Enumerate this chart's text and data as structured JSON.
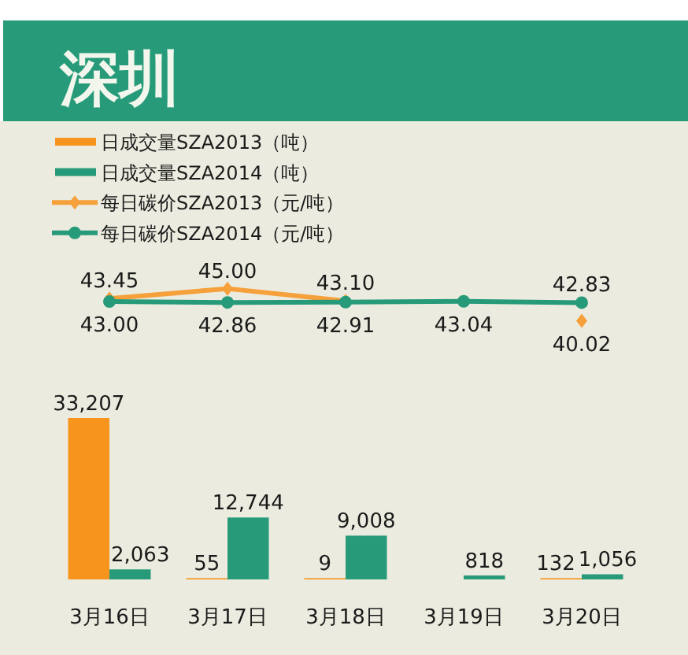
{
  "chart_data": [
    {
      "type": "line",
      "title": "深圳",
      "categories": [
        null,
        null,
        null,
        null,
        null
      ],
      "series": [
        {
          "name": "每日碳价SZA2013（元/吨）",
          "marker": "diamond",
          "color": "#f5a03a",
          "values": [
            43.45,
            45.0,
            43.1,
            null,
            40.02
          ],
          "value_labels": [
            "43.45",
            "45.00",
            "43.10",
            null,
            "40.02"
          ]
        },
        {
          "name": "每日碳价SZA2014（元/吨）",
          "marker": "circle",
          "color": "#279b79",
          "values": [
            43.0,
            42.86,
            42.91,
            43.04,
            42.83
          ],
          "value_labels": [
            "43.00",
            "42.86",
            "42.91",
            "43.04",
            "42.83"
          ]
        }
      ],
      "legend": "top left"
    },
    {
      "type": "bar",
      "categories": [
        "3月16日",
        "3月17日",
        "3月18日",
        "3月19日",
        "3月20日"
      ],
      "series": [
        {
          "name": "日成交量SZA2013（吨）",
          "color": "#f7941d",
          "values": [
            33207,
            55,
            9,
            null,
            132
          ],
          "value_labels": [
            "33,207",
            "55",
            "9",
            null,
            "132"
          ]
        },
        {
          "name": "日成交量SZA2014（吨）",
          "color": "#279b79",
          "values": [
            2063,
            12744,
            9008,
            818,
            1056
          ],
          "value_labels": [
            "2,063",
            "12,744",
            "9,008",
            "818",
            "1,056"
          ]
        }
      ],
      "legend": "top left"
    }
  ]
}
